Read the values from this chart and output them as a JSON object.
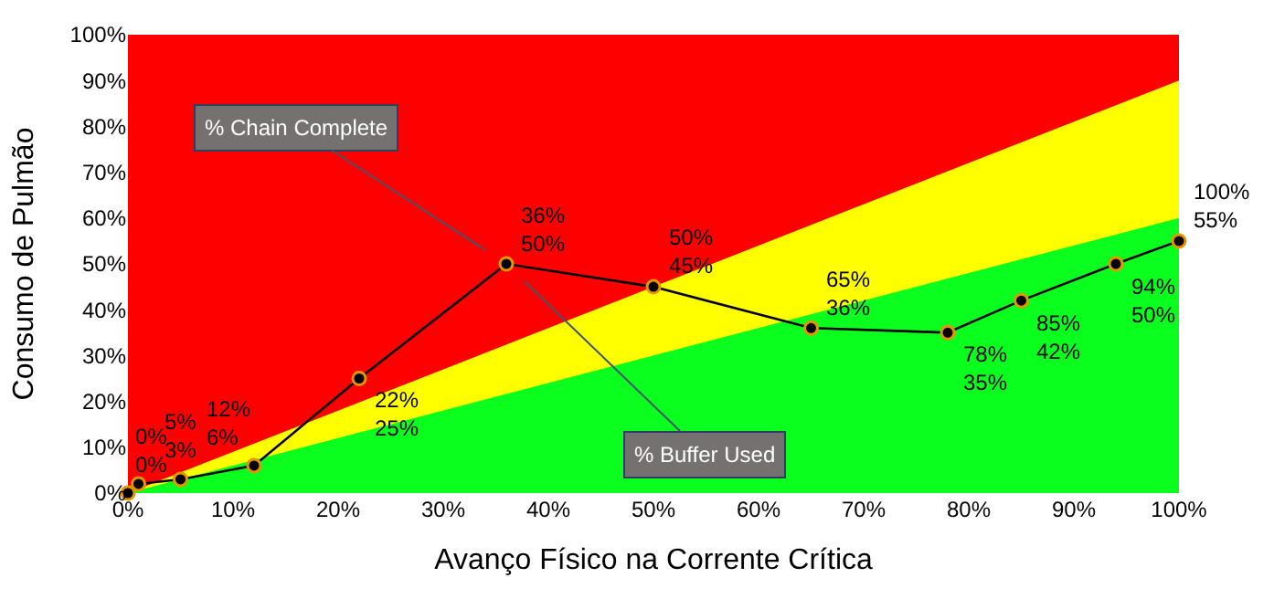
{
  "chart_data": {
    "type": "line",
    "xlabel": "Avanço Físico na Corrente Crítica",
    "ylabel": "Consumo de Pulmão",
    "xlim": [
      0,
      100
    ],
    "ylim": [
      0,
      100
    ],
    "xticks": [
      {
        "value": 0,
        "label": "0%"
      },
      {
        "value": 10,
        "label": "10%"
      },
      {
        "value": 20,
        "label": "20%"
      },
      {
        "value": 30,
        "label": "30%"
      },
      {
        "value": 40,
        "label": "40%"
      },
      {
        "value": 50,
        "label": "50%"
      },
      {
        "value": 60,
        "label": "60%"
      },
      {
        "value": 70,
        "label": "70%"
      },
      {
        "value": 80,
        "label": "80%"
      },
      {
        "value": 90,
        "label": "90%"
      },
      {
        "value": 100,
        "label": "100%"
      }
    ],
    "yticks": [
      {
        "value": 0,
        "label": "0%"
      },
      {
        "value": 10,
        "label": "10%"
      },
      {
        "value": 20,
        "label": "20%"
      },
      {
        "value": 30,
        "label": "30%"
      },
      {
        "value": 40,
        "label": "40%"
      },
      {
        "value": 50,
        "label": "50%"
      },
      {
        "value": 60,
        "label": "60%"
      },
      {
        "value": 70,
        "label": "70%"
      },
      {
        "value": 80,
        "label": "80%"
      },
      {
        "value": 90,
        "label": "90%"
      },
      {
        "value": 100,
        "label": "100%"
      }
    ],
    "series": [
      {
        "type": "area",
        "color": "#ff0000",
        "x": [
          0,
          100
        ],
        "values": [
          100,
          100
        ]
      },
      {
        "type": "area",
        "color": "#ffff00",
        "x": [
          0,
          100
        ],
        "values": [
          0,
          90
        ]
      },
      {
        "type": "area",
        "color": "#0aff1e",
        "x": [
          0,
          100
        ],
        "values": [
          0,
          60
        ]
      },
      {
        "color": "#000000",
        "marker": "circle",
        "line_style": "solid",
        "x": [
          0,
          1,
          5,
          12,
          22,
          36,
          50,
          65,
          78,
          85,
          94,
          100
        ],
        "values": [
          0,
          2,
          3,
          6,
          25,
          50,
          45,
          36,
          35,
          42,
          50,
          55
        ],
        "value_labels": [
          "0%\n0%",
          null,
          "5%\n3%",
          "12%\n6%",
          "22%\n25%",
          "36%\n50%",
          "50%\n45%",
          "65%\n36%",
          "78%\n35%",
          "85%\n42%",
          "94%\n50%",
          "100%\n55%"
        ]
      }
    ],
    "annotations": [
      {
        "text": "% Chain Complete",
        "x": 36,
        "y": 50
      },
      {
        "text": "% Buffer Used",
        "x": 36,
        "y": 50
      }
    ]
  }
}
